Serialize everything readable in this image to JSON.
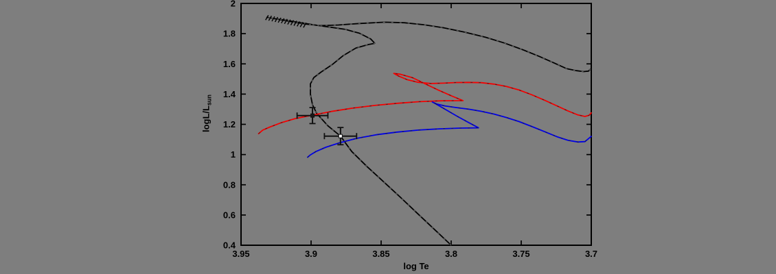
{
  "figure": {
    "background_color": "#7e7e7e",
    "axis_color": "#000000"
  },
  "chart_data": {
    "type": "line",
    "title": "",
    "xlabel": "log Te",
    "ylabel": {
      "main": "logL/L",
      "sub": "sun"
    },
    "grid": false,
    "legend": null,
    "x_axis": {
      "min": 3.7,
      "max": 3.95,
      "reversed": true,
      "ticks": [
        3.95,
        3.9,
        3.85,
        3.8,
        3.75,
        3.7
      ],
      "tick_labels": [
        "3.95",
        "3.9",
        "3.85",
        "3.8",
        "3.75",
        "3.7"
      ]
    },
    "y_axis": {
      "min": 0.4,
      "max": 2,
      "ticks": [
        0.4,
        0.6,
        0.8,
        1,
        1.2,
        1.4,
        1.6,
        1.8,
        2
      ],
      "tick_labels": [
        "0.4",
        "0.6",
        "0.8",
        "1",
        "1.2",
        "1.4",
        "1.6",
        "1.8",
        "2"
      ]
    },
    "series": [
      {
        "name": "black-evolution-track",
        "color": "#000000",
        "overlay": "#9a9a9a",
        "points": [
          [
            3.8,
            0.4
          ],
          [
            3.812,
            0.505
          ],
          [
            3.824,
            0.61
          ],
          [
            3.836,
            0.715
          ],
          [
            3.848,
            0.818
          ],
          [
            3.86,
            0.92
          ],
          [
            3.871,
            1.02
          ],
          [
            3.879,
            1.122
          ],
          [
            3.888,
            1.19
          ],
          [
            3.896,
            1.272
          ],
          [
            3.899,
            1.33
          ],
          [
            3.9005,
            1.4
          ],
          [
            3.9005,
            1.468
          ],
          [
            3.898,
            1.51
          ],
          [
            3.893,
            1.545
          ],
          [
            3.885,
            1.595
          ],
          [
            3.877,
            1.655
          ],
          [
            3.868,
            1.705
          ],
          [
            3.859,
            1.728
          ],
          [
            3.8545,
            1.736
          ],
          [
            3.8575,
            1.765
          ],
          [
            3.8655,
            1.803
          ],
          [
            3.8755,
            1.828
          ],
          [
            3.888,
            1.845
          ],
          [
            3.898,
            1.858
          ],
          [
            3.9075,
            1.872
          ],
          [
            3.918,
            1.888
          ],
          [
            3.9265,
            1.9
          ],
          [
            3.9315,
            1.908
          ],
          [
            3.9245,
            1.896
          ],
          [
            3.9135,
            1.878
          ],
          [
            3.9035,
            1.863
          ],
          [
            3.8935,
            1.853
          ],
          [
            3.8805,
            1.857
          ],
          [
            3.8655,
            1.867
          ],
          [
            3.8475,
            1.876
          ],
          [
            3.8335,
            1.872
          ],
          [
            3.8195,
            1.859
          ],
          [
            3.805,
            1.838
          ],
          [
            3.7905,
            1.81
          ],
          [
            3.7755,
            1.776
          ],
          [
            3.762,
            1.738
          ],
          [
            3.749,
            1.694
          ],
          [
            3.737,
            1.649
          ],
          [
            3.7265,
            1.606
          ],
          [
            3.7175,
            1.568
          ],
          [
            3.7105,
            1.555
          ],
          [
            3.7055,
            1.549
          ],
          [
            3.702,
            1.552
          ],
          [
            3.7,
            1.57
          ]
        ]
      },
      {
        "name": "red-evolution-track",
        "color": "#f50000",
        "overlay": "#1a1a1a",
        "points": [
          [
            3.9375,
            1.138
          ],
          [
            3.9345,
            1.162
          ],
          [
            3.9295,
            1.182
          ],
          [
            3.9215,
            1.21
          ],
          [
            3.9115,
            1.237
          ],
          [
            3.8995,
            1.26
          ],
          [
            3.8855,
            1.285
          ],
          [
            3.8705,
            1.307
          ],
          [
            3.8545,
            1.325
          ],
          [
            3.8385,
            1.339
          ],
          [
            3.8225,
            1.35
          ],
          [
            3.8065,
            1.356
          ],
          [
            3.7915,
            1.357
          ],
          [
            3.7995,
            1.387
          ],
          [
            3.8095,
            1.428
          ],
          [
            3.8185,
            1.468
          ],
          [
            3.8275,
            1.508
          ],
          [
            3.8365,
            1.532
          ],
          [
            3.841,
            1.537
          ],
          [
            3.8375,
            1.519
          ],
          [
            3.8315,
            1.496
          ],
          [
            3.8235,
            1.478
          ],
          [
            3.8145,
            1.47
          ],
          [
            3.8055,
            1.4725
          ],
          [
            3.7965,
            1.4765
          ],
          [
            3.7875,
            1.4775
          ],
          [
            3.7785,
            1.4755
          ],
          [
            3.7695,
            1.466
          ],
          [
            3.7605,
            1.45
          ],
          [
            3.7515,
            1.427
          ],
          [
            3.7425,
            1.396
          ],
          [
            3.7335,
            1.36
          ],
          [
            3.7245,
            1.322
          ],
          [
            3.7165,
            1.288
          ],
          [
            3.7095,
            1.262
          ],
          [
            3.7045,
            1.252
          ],
          [
            3.7015,
            1.26
          ],
          [
            3.7,
            1.276
          ]
        ]
      },
      {
        "name": "blue-evolution-track",
        "color": "#0000e6",
        "overlay": "#1a1a1a",
        "points": [
          [
            3.9025,
            0.982
          ],
          [
            3.9005,
            0.998
          ],
          [
            3.8965,
            1.02
          ],
          [
            3.8895,
            1.048
          ],
          [
            3.8795,
            1.078
          ],
          [
            3.8675,
            1.107
          ],
          [
            3.8535,
            1.131
          ],
          [
            3.8385,
            1.149
          ],
          [
            3.8235,
            1.162
          ],
          [
            3.8085,
            1.17
          ],
          [
            3.7935,
            1.175
          ],
          [
            3.7805,
            1.177
          ],
          [
            3.7875,
            1.212
          ],
          [
            3.7955,
            1.252
          ],
          [
            3.8035,
            1.295
          ],
          [
            3.8105,
            1.333
          ],
          [
            3.8135,
            1.348
          ],
          [
            3.8105,
            1.335
          ],
          [
            3.8045,
            1.322
          ],
          [
            3.7965,
            1.311
          ],
          [
            3.7875,
            1.3
          ],
          [
            3.7785,
            1.286
          ],
          [
            3.7695,
            1.268
          ],
          [
            3.7605,
            1.245
          ],
          [
            3.7515,
            1.218
          ],
          [
            3.7425,
            1.186
          ],
          [
            3.7335,
            1.152
          ],
          [
            3.7245,
            1.118
          ],
          [
            3.7165,
            1.094
          ],
          [
            3.7095,
            1.083
          ],
          [
            3.7045,
            1.086
          ],
          [
            3.7,
            1.12
          ]
        ]
      }
    ],
    "hatch_segment": {
      "from": [
        3.9315,
        1.906
      ],
      "to": [
        3.9045,
        1.856
      ],
      "count": 13
    },
    "error_points": [
      {
        "te": 3.899,
        "logl": 1.258,
        "xerr": 0.011,
        "yerr": 0.053,
        "marker": "filled-square",
        "marker_fill": "#1a1a1a"
      },
      {
        "te": 3.879,
        "logl": 1.122,
        "xerr": 0.0115,
        "yerr": 0.057,
        "marker": "open-square",
        "marker_fill": "#ffffff"
      }
    ]
  }
}
